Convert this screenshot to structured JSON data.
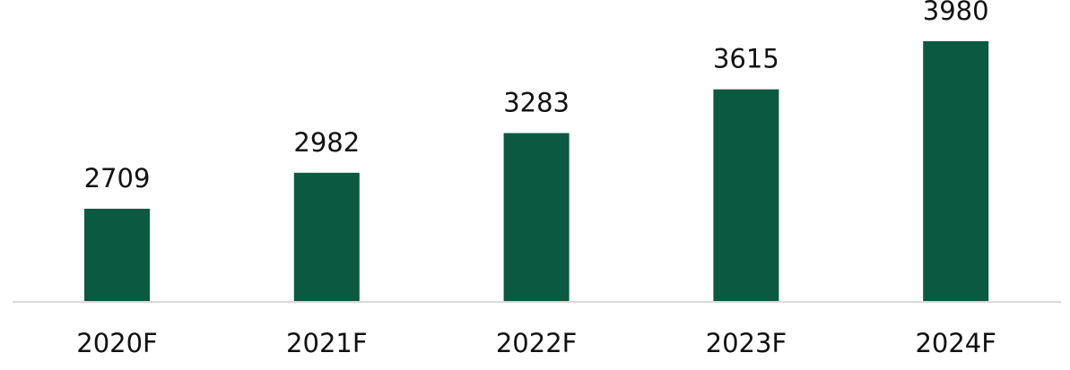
{
  "chart_data": {
    "type": "bar",
    "categories": [
      "2020F",
      "2021F",
      "2022F",
      "2023F",
      "2024F"
    ],
    "series": [
      {
        "values": [
          2709,
          2982,
          3283,
          3615,
          3980
        ]
      }
    ],
    "data_labels": [
      "2709",
      "2982",
      "3283",
      "3615",
      "3980"
    ],
    "title": "",
    "xlabel": "",
    "ylabel": "",
    "y_axis_visible": false,
    "grid": false,
    "legend": "none",
    "colors": {
      "bar": "#0b5940",
      "axis_line": "#d9d9d9",
      "text": "#111111"
    }
  }
}
